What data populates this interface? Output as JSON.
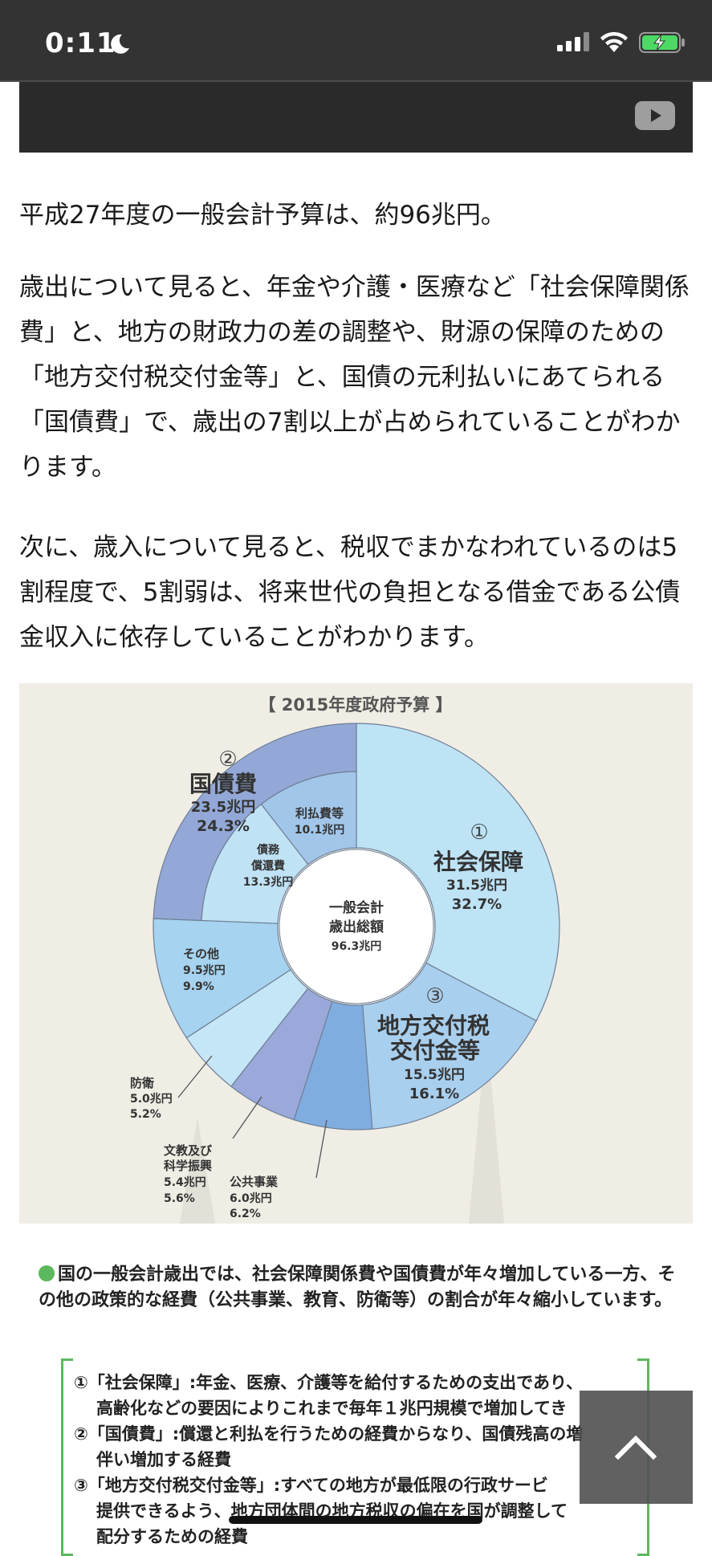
{
  "status_bar": {
    "time": "0:11",
    "icons": [
      "moon-icon",
      "signal-icon",
      "wifi-icon",
      "battery-charging-icon"
    ]
  },
  "video": {
    "icon": "youtube-play-icon"
  },
  "article": {
    "p1": "平成27年度の一般会計予算は、約96兆円。",
    "p2": "歳出について見ると、年金や介護・医療など「社会保障関係費」と、地方の財政力の差の調整や、財源の保障のための「地方交付税交付金等」と、国債の元利払いにあてられる「国債費」で、歳出の7割以上が占められていることがわかります。",
    "p3": "次に、歳入について見ると、税収でまかなわれているのは5割程度で、5割弱は、将来世代の負担となる借金である公債金収入に依存していることがわかります。"
  },
  "chart_data": {
    "type": "pie",
    "title": "【 2015年度政府予算 】",
    "center": {
      "line1": "一般会計",
      "line2": "歳出総額",
      "total": "96.3兆円"
    },
    "units": "兆円",
    "slices": [
      {
        "num": "①",
        "label": "社会保障",
        "amount": "31.5兆円",
        "pct": "32.7%",
        "value": 31.5,
        "color": "#bde3f5"
      },
      {
        "num": "③",
        "label_l1": "地方交付税",
        "label_l2": "交付金等",
        "amount": "15.5兆円",
        "pct": "16.1%",
        "value": 15.5,
        "color": "#a9cfee"
      },
      {
        "label": "公共事業",
        "amount": "6.0兆円",
        "pct": "6.2%",
        "value": 6.0,
        "color": "#80ade0"
      },
      {
        "label_l1": "文教及び",
        "label_l2": "科学振興",
        "amount": "5.4兆円",
        "pct": "5.6%",
        "value": 5.4,
        "color": "#9aa9da"
      },
      {
        "label": "防衛",
        "amount": "5.0兆円",
        "pct": "5.2%",
        "value": 5.0,
        "color": "#c5e6f7"
      },
      {
        "label": "その他",
        "amount": "9.5兆円",
        "pct": "9.9%",
        "value": 9.5,
        "color": "#a6d3ef"
      },
      {
        "num": "②",
        "label": "国債費",
        "amount": "23.5兆円",
        "pct": "24.3%",
        "value": 23.5,
        "color": "#93a8d6",
        "sub": [
          {
            "label_l1": "債務",
            "label_l2": "償還費",
            "amount": "13.3兆円",
            "value": 13.3,
            "color": "#bfe2f5"
          },
          {
            "label": "利払費等",
            "amount": "10.1兆円",
            "value": 10.1,
            "color": "#a2c6ea"
          }
        ]
      }
    ]
  },
  "note": {
    "lead": "国の一般会計歳出では、社会保障関係費や国債費が年々増加している一方、その他の政策的な経費（公共事業、教育、防衛等）の割合が年々縮小しています。",
    "lines": [
      "①「社会保障」:年金、医療、介護等を給付するための支出であり、",
      "高齢化などの要因によりこれまで毎年１兆円規模で増加してき",
      "②「国債費」:償還と利払を行うための経費からなり、国債残高の増",
      "伴い増加する経費",
      "③「地方交付税交付金等」:すべての地方が最低限の行政サービ",
      "提供できるよう、地方団体間の地方税収の偏在を国が調整して",
      "配分するための経費"
    ]
  },
  "scroll_top": {
    "icon": "chevron-up-icon"
  }
}
